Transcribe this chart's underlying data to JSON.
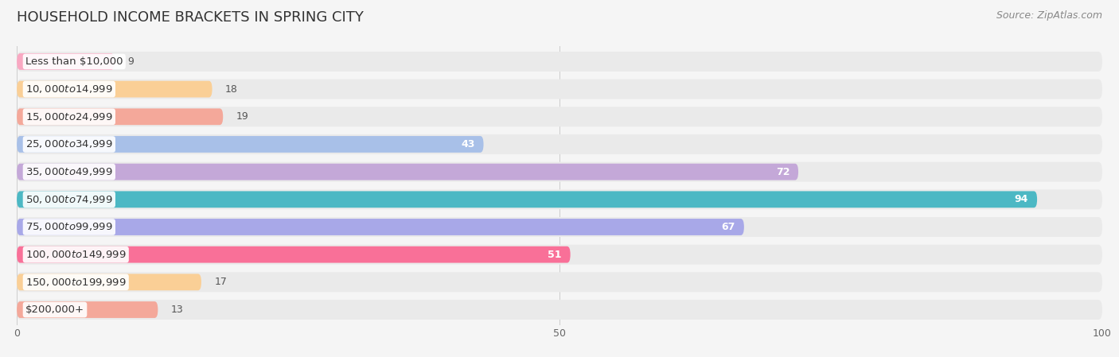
{
  "title": "HOUSEHOLD INCOME BRACKETS IN SPRING CITY",
  "source": "Source: ZipAtlas.com",
  "categories": [
    "Less than $10,000",
    "$10,000 to $14,999",
    "$15,000 to $24,999",
    "$25,000 to $34,999",
    "$35,000 to $49,999",
    "$50,000 to $74,999",
    "$75,000 to $99,999",
    "$100,000 to $149,999",
    "$150,000 to $199,999",
    "$200,000+"
  ],
  "values": [
    9,
    18,
    19,
    43,
    72,
    94,
    67,
    51,
    17,
    13
  ],
  "bar_colors": [
    "#F9A8C2",
    "#FACF96",
    "#F4A89A",
    "#A8C0E8",
    "#C4A8D8",
    "#4CB8C4",
    "#A8A8E8",
    "#F97098",
    "#FACF96",
    "#F4A89A"
  ],
  "xlim": [
    0,
    100
  ],
  "background_color": "#f5f5f5",
  "row_bg_color": "#eaeaea",
  "title_fontsize": 13,
  "label_fontsize": 9.5,
  "value_fontsize": 9,
  "source_fontsize": 9
}
